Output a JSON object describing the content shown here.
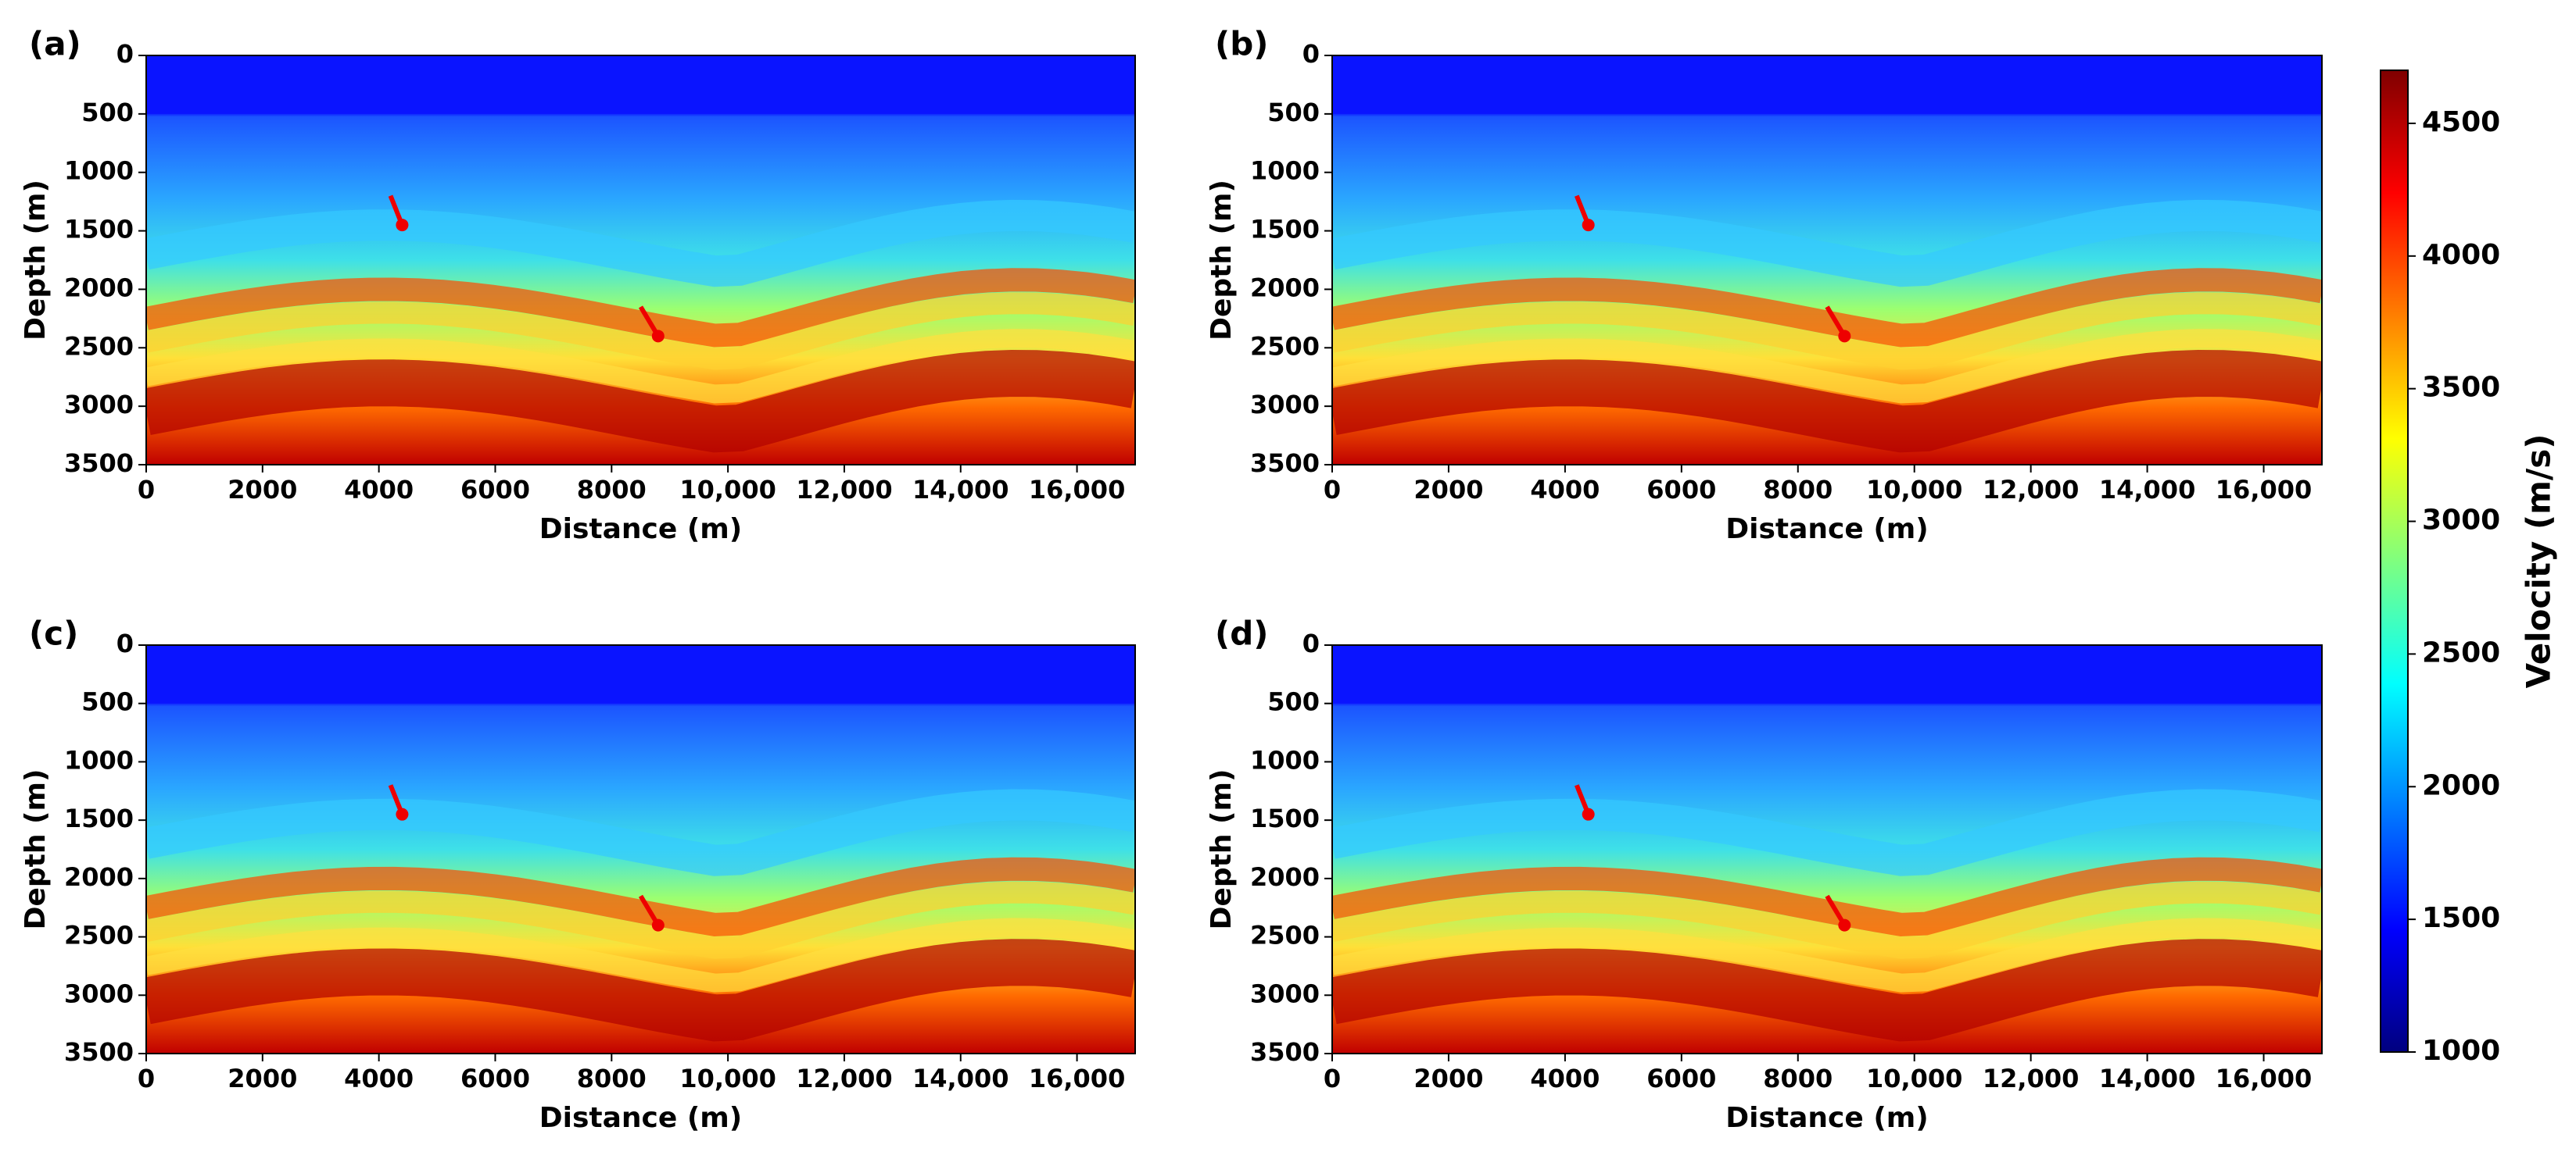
{
  "chart_data": [
    {
      "type": "heatmap",
      "label": "(a)",
      "xlabel": "Distance (m)",
      "ylabel": "Depth (m)",
      "xlim": [
        0,
        17000
      ],
      "ylim": [
        3500,
        0
      ],
      "xticks": [
        0,
        2000,
        4000,
        6000,
        8000,
        {
          "value": 10000,
          "label": "10,000"
        },
        {
          "value": 12000,
          "label": "12,000"
        },
        {
          "value": 14000,
          "label": "14,000"
        },
        {
          "value": 16000,
          "label": "16,000"
        }
      ],
      "yticks": [
        0,
        500,
        1000,
        1500,
        2000,
        2500,
        3000,
        3500
      ]
    },
    {
      "type": "heatmap",
      "label": "(b)",
      "xlabel": "Distance (m)",
      "ylabel": "Depth (m)",
      "xlim": [
        0,
        17000
      ],
      "ylim": [
        3500,
        0
      ],
      "xticks": [
        0,
        2000,
        4000,
        6000,
        8000,
        {
          "value": 10000,
          "label": "10,000"
        },
        {
          "value": 12000,
          "label": "12,000"
        },
        {
          "value": 14000,
          "label": "14,000"
        },
        {
          "value": 16000,
          "label": "16,000"
        }
      ],
      "yticks": [
        0,
        500,
        1000,
        1500,
        2000,
        2500,
        3000,
        3500
      ]
    },
    {
      "type": "heatmap",
      "label": "(c)",
      "xlabel": "Distance (m)",
      "ylabel": "Depth (m)",
      "xlim": [
        0,
        17000
      ],
      "ylim": [
        3500,
        0
      ],
      "xticks": [
        0,
        2000,
        4000,
        6000,
        8000,
        {
          "value": 10000,
          "label": "10,000"
        },
        {
          "value": 12000,
          "label": "12,000"
        },
        {
          "value": 14000,
          "label": "14,000"
        },
        {
          "value": 16000,
          "label": "16,000"
        }
      ],
      "yticks": [
        0,
        500,
        1000,
        1500,
        2000,
        2500,
        3000,
        3500
      ]
    },
    {
      "type": "heatmap",
      "label": "(d)",
      "xlabel": "Distance (m)",
      "ylabel": "Depth (m)",
      "xlim": [
        0,
        17000
      ],
      "ylim": [
        3500,
        0
      ],
      "xticks": [
        0,
        2000,
        4000,
        6000,
        8000,
        {
          "value": 10000,
          "label": "10,000"
        },
        {
          "value": 12000,
          "label": "12,000"
        },
        {
          "value": 14000,
          "label": "14,000"
        },
        {
          "value": 16000,
          "label": "16,000"
        }
      ],
      "yticks": [
        0,
        500,
        1000,
        1500,
        2000,
        2500,
        3000,
        3500
      ]
    }
  ],
  "colorbar": {
    "label": "Velocity (m/s)",
    "colormap": "jet",
    "lim": [
      1000,
      4700
    ],
    "ticks": [
      1000,
      1500,
      2000,
      2500,
      3000,
      3500,
      4000,
      4500
    ]
  }
}
